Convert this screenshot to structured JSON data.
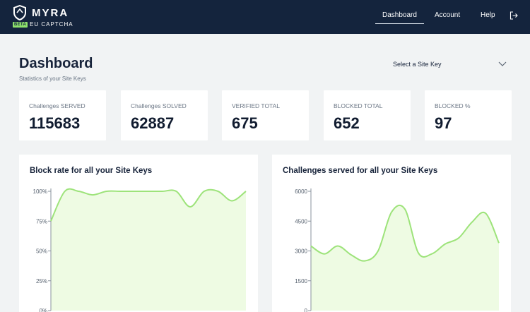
{
  "header": {
    "brand": "MYRA",
    "badge": "BETA",
    "product": "EU CAPTCHA",
    "nav": [
      {
        "label": "Dashboard",
        "active": true
      },
      {
        "label": "Account",
        "active": false
      },
      {
        "label": "Help",
        "active": false
      }
    ],
    "icons": {
      "logo": "shield-icon",
      "logout": "logout-icon"
    }
  },
  "page": {
    "title": "Dashboard",
    "subtitle": "Statistics of your Site Keys",
    "site_select": {
      "placeholder": "Select a Site Key"
    }
  },
  "stats": [
    {
      "label": "Challenges SERVED",
      "value": "115683"
    },
    {
      "label": "Challenges SOLVED",
      "value": "62887"
    },
    {
      "label": "VERIFIED TOTAL",
      "value": "675"
    },
    {
      "label": "BLOCKED TOTAL",
      "value": "652"
    },
    {
      "label": "BLOCKED %",
      "value": "97"
    }
  ],
  "colors": {
    "header_bg": "#14243d",
    "accent_green": "#8ee26c",
    "chart_fill": "#eefbe3",
    "chart_line": "#9de37a"
  },
  "chart_data": [
    {
      "type": "area",
      "title": "Block rate for all your Site Keys",
      "ytick_labels": [
        "100%",
        "75%",
        "50%",
        "25%",
        "0%"
      ],
      "ylim": [
        0,
        100
      ],
      "x": [
        0,
        1,
        2,
        3,
        4,
        5,
        6,
        7,
        8,
        9,
        10,
        11,
        12,
        13,
        14
      ],
      "values": [
        75,
        100,
        100,
        97,
        100,
        100,
        100,
        100,
        100,
        100,
        87,
        100,
        100,
        92,
        100
      ],
      "grid": false
    },
    {
      "type": "area",
      "title": "Challenges served for all your Site Keys",
      "ytick_labels": [
        "6000",
        "4500",
        "3000",
        "1500",
        "0"
      ],
      "ylim": [
        0,
        6000
      ],
      "x": [
        0,
        1,
        2,
        3,
        4,
        5,
        6,
        7,
        8,
        9,
        10,
        11,
        12,
        13,
        14
      ],
      "values": [
        3250,
        2850,
        3250,
        2800,
        2500,
        3000,
        4950,
        5100,
        2900,
        2850,
        3350,
        3650,
        4450,
        4900,
        3400
      ],
      "grid": false
    }
  ]
}
